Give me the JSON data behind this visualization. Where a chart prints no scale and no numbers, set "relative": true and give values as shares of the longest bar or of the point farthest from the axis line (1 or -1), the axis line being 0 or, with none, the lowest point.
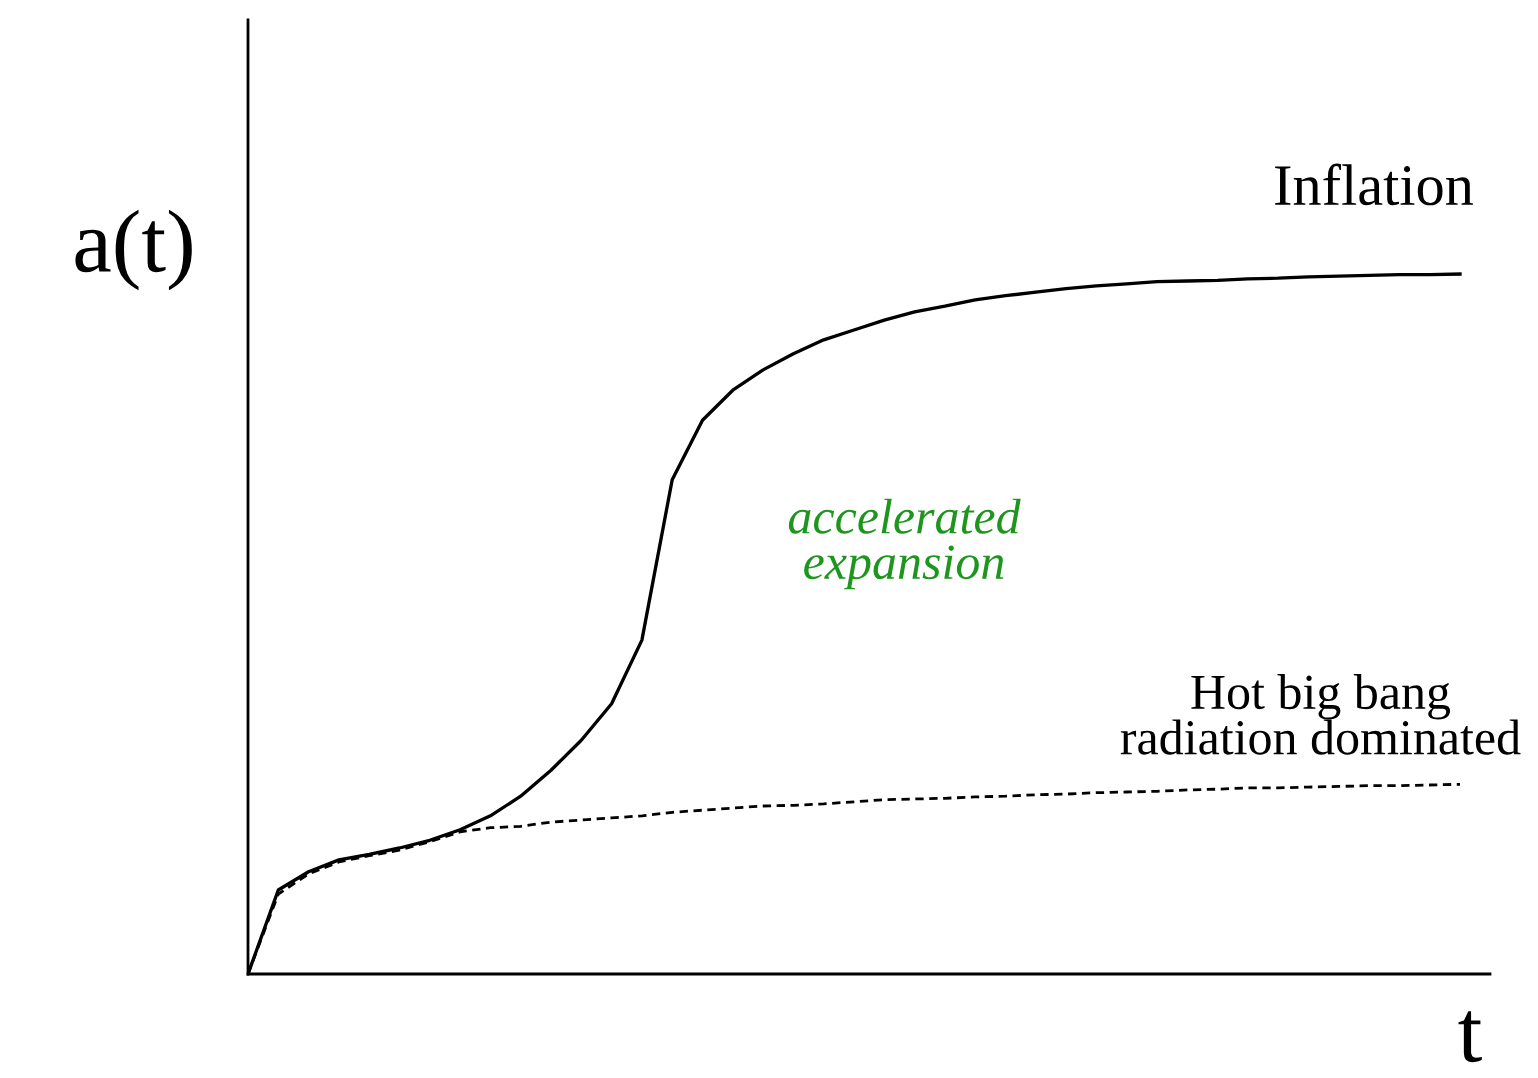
{
  "chart_data": {
    "type": "line",
    "relative": true,
    "xlabel": "t",
    "ylabel": "a(t)",
    "tick_labels": false,
    "categories": [
      null,
      null,
      null,
      null,
      null,
      null,
      null,
      null,
      null,
      null,
      null,
      null,
      null,
      null,
      null,
      null,
      null,
      null,
      null,
      null,
      null,
      null,
      null,
      null,
      null,
      null,
      null,
      null,
      null,
      null,
      null,
      null,
      null,
      null,
      null,
      null,
      null,
      null,
      null,
      null,
      null
    ],
    "series": [
      {
        "name": "Inflation",
        "color": "#000000",
        "line_style": "solid",
        "values": [
          0,
          0.12,
          0.146,
          0.163,
          0.171,
          0.18,
          0.191,
          0.206,
          0.226,
          0.254,
          0.291,
          0.334,
          0.386,
          0.477,
          0.706,
          0.791,
          0.834,
          0.863,
          0.886,
          0.906,
          0.92,
          0.934,
          0.946,
          0.954,
          0.963,
          0.969,
          0.974,
          0.979,
          0.983,
          0.986,
          0.989,
          0.99,
          0.991,
          0.993,
          0.994,
          0.996,
          0.997,
          0.998,
          0.999,
          0.999,
          1
        ]
      },
      {
        "name": "Hot big bang\nradiation dominated",
        "color": "#000000",
        "line_style": "dashed",
        "values": [
          0,
          0.114,
          0.143,
          0.16,
          0.169,
          0.177,
          0.189,
          0.203,
          0.209,
          0.211,
          0.217,
          0.22,
          0.223,
          0.226,
          0.231,
          0.234,
          0.237,
          0.24,
          0.241,
          0.243,
          0.246,
          0.249,
          0.25,
          0.251,
          0.253,
          0.254,
          0.256,
          0.257,
          0.259,
          0.26,
          0.261,
          0.263,
          0.264,
          0.266,
          0.266,
          0.267,
          0.268,
          0.269,
          0.269,
          0.27,
          0.271
        ]
      }
    ],
    "annotations": [
      "accelerated\nexpansion"
    ]
  }
}
